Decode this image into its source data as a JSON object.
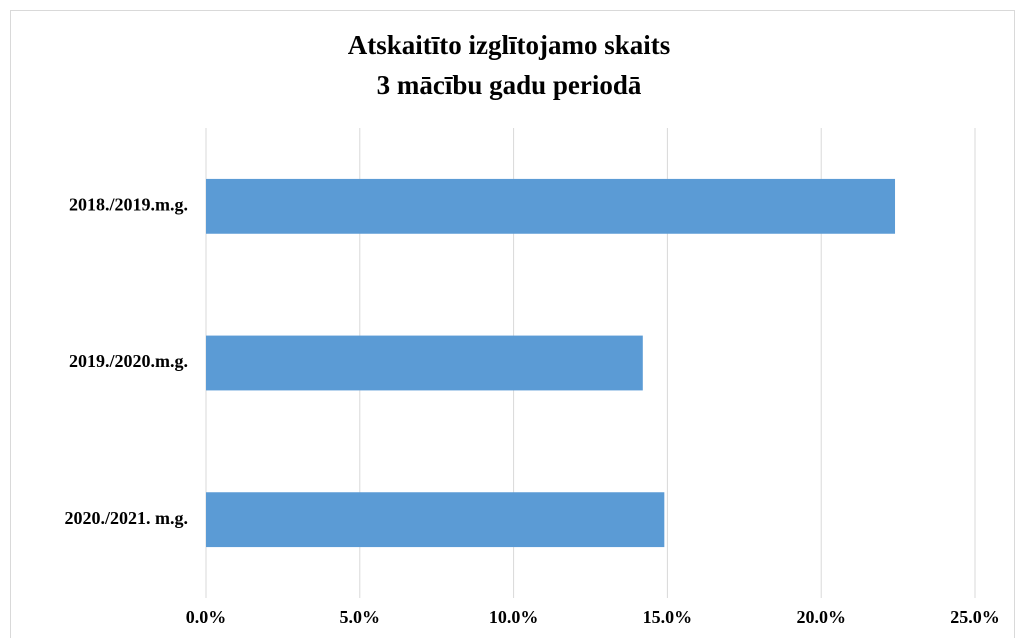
{
  "chart_data": {
    "type": "bar",
    "orientation": "horizontal",
    "title": [
      "Atskaitīto izglītojamo skaits",
      "3 mācību gadu periodā"
    ],
    "categories": [
      "2018./2019.m.g.",
      "2019./2020.m.g.",
      "2020./2021. m.g."
    ],
    "values": [
      22.4,
      14.2,
      14.9
    ],
    "color": "#5b9bd5",
    "xlim": [
      0,
      25
    ],
    "xticks": [
      {
        "value": 0,
        "label": "0.0%"
      },
      {
        "value": 5,
        "label": "5.0%"
      },
      {
        "value": 10,
        "label": "10.0%"
      },
      {
        "value": 15,
        "label": "15.0%"
      },
      {
        "value": 20,
        "label": "20.0%"
      },
      {
        "value": 25,
        "label": "25.0%"
      }
    ],
    "grid": true
  }
}
